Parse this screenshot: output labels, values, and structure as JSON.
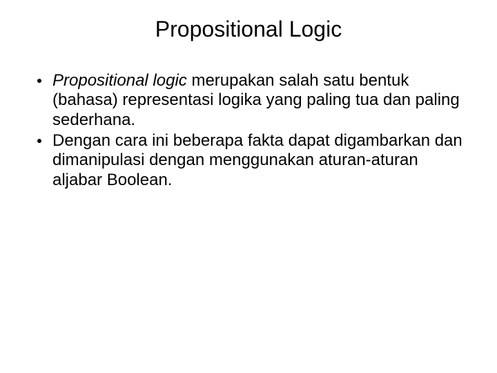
{
  "slide": {
    "title": "Propositional Logic",
    "title_fontsize": 32,
    "title_color": "#000000",
    "body_fontsize": 24,
    "body_color": "#000000",
    "body_line_height": 1.18,
    "background_color": "#ffffff",
    "bullets": [
      {
        "italic_lead": "Propositional logic",
        "rest": " merupakan salah satu bentuk (bahasa) representasi logika yang paling tua dan paling sederhana."
      },
      {
        "italic_lead": "",
        "rest": "Dengan cara ini beberapa fakta dapat digambarkan dan dimanipulasi dengan menggunakan aturan-aturan aljabar Boolean."
      }
    ]
  }
}
